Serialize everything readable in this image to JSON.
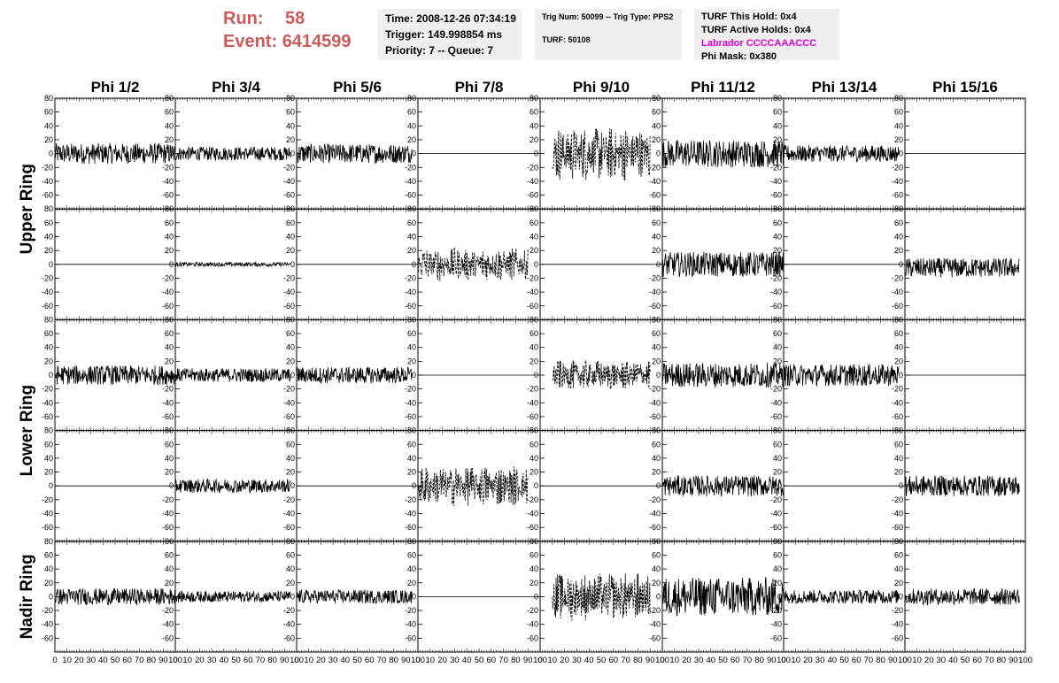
{
  "header": {
    "run_label": "Run:",
    "run_value": "58",
    "event_label": "Event:",
    "event_value": "6414599"
  },
  "info_time": {
    "time": "Time: 2008-12-26 07:34:19",
    "trigger": "Trigger: 149.998854 ms",
    "priority": "Priority: 7 -- Queue: 7"
  },
  "info_trig": {
    "trig": "Trig Num: 50099 -- Trig Type: PPS2",
    "turf": "TURF: 50108"
  },
  "info_turf": {
    "hold": "TURF This Hold: 0x4",
    "active": "TURF Active Holds: 0x4",
    "labrador": "Labrador CCCCAAACCC",
    "phimask": "Phi Mask: 0x380"
  },
  "colors": {
    "run_text": "#d05a5a",
    "labrador_text": "#e000e0",
    "trace": "#000000"
  },
  "chart_data": {
    "type": "line",
    "columns": [
      "Phi 1/2",
      "Phi 3/4",
      "Phi 5/6",
      "Phi 7/8",
      "Phi 9/10",
      "Phi 11/12",
      "Phi 13/14",
      "Phi 15/16"
    ],
    "ring_labels": [
      "Upper Ring",
      "Lower Ring",
      "Nadir Ring"
    ],
    "ylim": [
      -80,
      80
    ],
    "yticks": [
      -60,
      -40,
      -20,
      0,
      20,
      40,
      60,
      80
    ],
    "ytick_labels": [
      "-60",
      "-40",
      "-20",
      "0",
      "20",
      "40",
      "60",
      "80"
    ],
    "xlim": [
      0,
      100
    ],
    "xticks": [
      0,
      10,
      20,
      30,
      40,
      50,
      60,
      70,
      80,
      90,
      100
    ],
    "xtick_labels": [
      "0",
      "10",
      "20",
      "30",
      "40",
      "50",
      "60",
      "70",
      "80",
      "90",
      "100"
    ],
    "panels_row_amplitudes": [
      [
        15,
        10,
        14,
        0,
        40,
        20,
        12,
        0
      ],
      [
        0,
        3,
        0,
        25,
        0,
        18,
        0,
        14
      ],
      [
        14,
        10,
        12,
        0,
        22,
        18,
        16,
        0
      ],
      [
        0,
        10,
        0,
        30,
        0,
        15,
        0,
        15
      ],
      [
        12,
        8,
        10,
        0,
        35,
        28,
        10,
        12
      ]
    ],
    "panels_row_offsets": [
      [
        0,
        0,
        0,
        0,
        0,
        0,
        0,
        0
      ],
      [
        0,
        0,
        0,
        0,
        0,
        0,
        0,
        -5
      ],
      [
        0,
        0,
        0,
        0,
        0,
        0,
        0,
        0
      ],
      [
        0,
        0,
        0,
        0,
        0,
        0,
        0,
        0
      ],
      [
        0,
        0,
        0,
        0,
        0,
        0,
        0,
        0
      ]
    ],
    "panels_row_dashed": [
      [
        false,
        false,
        false,
        false,
        true,
        false,
        false,
        false
      ],
      [
        false,
        false,
        false,
        true,
        false,
        false,
        false,
        false
      ],
      [
        false,
        false,
        false,
        false,
        true,
        false,
        false,
        false
      ],
      [
        false,
        false,
        false,
        true,
        false,
        false,
        false,
        false
      ],
      [
        false,
        false,
        false,
        false,
        true,
        false,
        false,
        false
      ]
    ],
    "panels_trace_span": [
      [
        [
          0,
          100
        ],
        [
          0,
          95
        ],
        [
          0,
          95
        ],
        [
          0,
          100
        ],
        [
          10,
          90
        ],
        [
          0,
          100
        ],
        [
          0,
          95
        ],
        [
          0,
          100
        ]
      ],
      [
        [
          0,
          100
        ],
        [
          0,
          95
        ],
        [
          0,
          100
        ],
        [
          0,
          90
        ],
        [
          0,
          100
        ],
        [
          0,
          100
        ],
        [
          0,
          100
        ],
        [
          0,
          95
        ]
      ],
      [
        [
          0,
          100
        ],
        [
          0,
          95
        ],
        [
          0,
          95
        ],
        [
          0,
          100
        ],
        [
          10,
          90
        ],
        [
          0,
          100
        ],
        [
          0,
          95
        ],
        [
          0,
          100
        ]
      ],
      [
        [
          0,
          100
        ],
        [
          0,
          95
        ],
        [
          0,
          100
        ],
        [
          0,
          90
        ],
        [
          0,
          100
        ],
        [
          0,
          100
        ],
        [
          0,
          100
        ],
        [
          0,
          95
        ]
      ],
      [
        [
          0,
          100
        ],
        [
          0,
          95
        ],
        [
          0,
          95
        ],
        [
          0,
          100
        ],
        [
          10,
          90
        ],
        [
          0,
          100
        ],
        [
          0,
          95
        ],
        [
          0,
          95
        ]
      ]
    ]
  }
}
